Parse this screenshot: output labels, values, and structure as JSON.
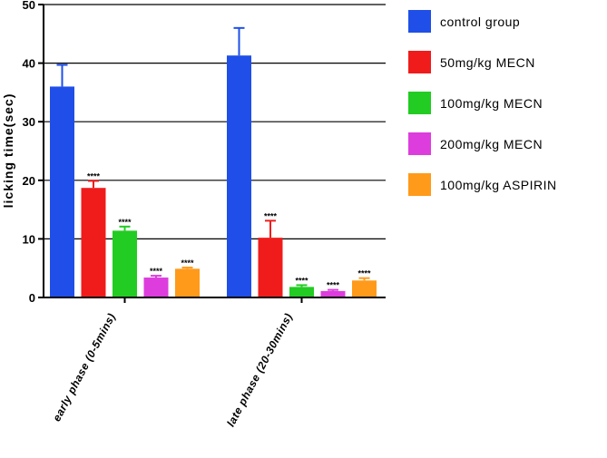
{
  "chart_data": {
    "type": "bar",
    "ylabel": "licking time(sec)",
    "ylim": [
      0,
      50
    ],
    "yticks": [
      0,
      10,
      20,
      30,
      40,
      50
    ],
    "grid": "horizontal",
    "legend_position": "right",
    "categories": [
      "early phase (0-5mins)",
      "late phase (20-30mins)"
    ],
    "series": [
      {
        "name": "control group",
        "color": "#1f4fe8",
        "values": [
          36,
          41.3
        ],
        "errors": [
          3.7,
          4.7
        ],
        "labels": [
          "",
          ""
        ]
      },
      {
        "name": "50mg/kg MECN",
        "color": "#f01c1c",
        "values": [
          18.7,
          10.2
        ],
        "errors": [
          1.2,
          2.9
        ],
        "labels": [
          "****",
          "****"
        ]
      },
      {
        "name": "100mg/kg MECN",
        "color": "#22cc22",
        "values": [
          11.4,
          1.8
        ],
        "errors": [
          0.7,
          0.3
        ],
        "labels": [
          "****",
          "****"
        ]
      },
      {
        "name": "200mg/kg MECN",
        "color": "#dd3ddd",
        "values": [
          3.4,
          1.1
        ],
        "errors": [
          0.3,
          0.2
        ],
        "labels": [
          "****",
          "****"
        ]
      },
      {
        "name": "100mg/kg ASPIRIN",
        "color": "#ff9a1a",
        "values": [
          4.9,
          2.9
        ],
        "errors": [
          0.2,
          0.4
        ],
        "labels": [
          "****",
          "****"
        ]
      }
    ]
  }
}
